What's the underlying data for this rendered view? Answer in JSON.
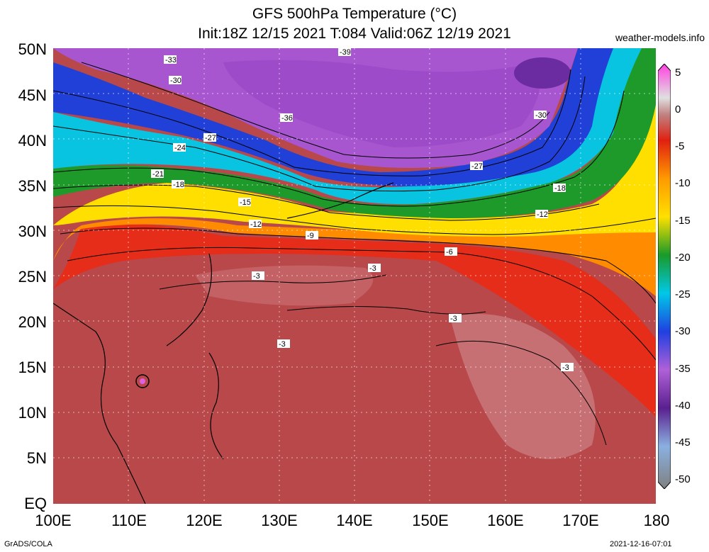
{
  "title_line1": "GFS 500hPa Temperature (°C)",
  "title_line2": "Init:18Z 12/15 2021 T:084 Valid:06Z 12/19 2021",
  "site": "weather-models.info",
  "footer_left": "GrADS/COLA",
  "footer_right": "2021-12-16-07:01",
  "lat_labels": [
    "50N",
    "45N",
    "40N",
    "35N",
    "30N",
    "25N",
    "20N",
    "15N",
    "10N",
    "5N",
    "EQ"
  ],
  "lon_labels": [
    "100E",
    "110E",
    "120E",
    "130E",
    "140E",
    "150E",
    "160E",
    "170E",
    "180"
  ],
  "colorbar_labels": [
    "5",
    "0",
    "-5",
    "-10",
    "-15",
    "-20",
    "-25",
    "-30",
    "-35",
    "-40",
    "-45",
    "-50"
  ],
  "contour_labels": [
    "-39",
    "-33",
    "-30",
    "-36",
    "-27",
    "-24",
    "-21",
    "-18",
    "-15",
    "-12",
    "-9",
    "-6",
    "-3"
  ],
  "colors": {
    "tropical": "#b8484a",
    "warm_red": "#e52d1a",
    "orange": "#ff9a00",
    "yellow": "#ffe000",
    "green": "#1a9a2a",
    "cyan": "#00c8e8",
    "blue": "#2040e0",
    "purple": "#a050d0"
  }
}
